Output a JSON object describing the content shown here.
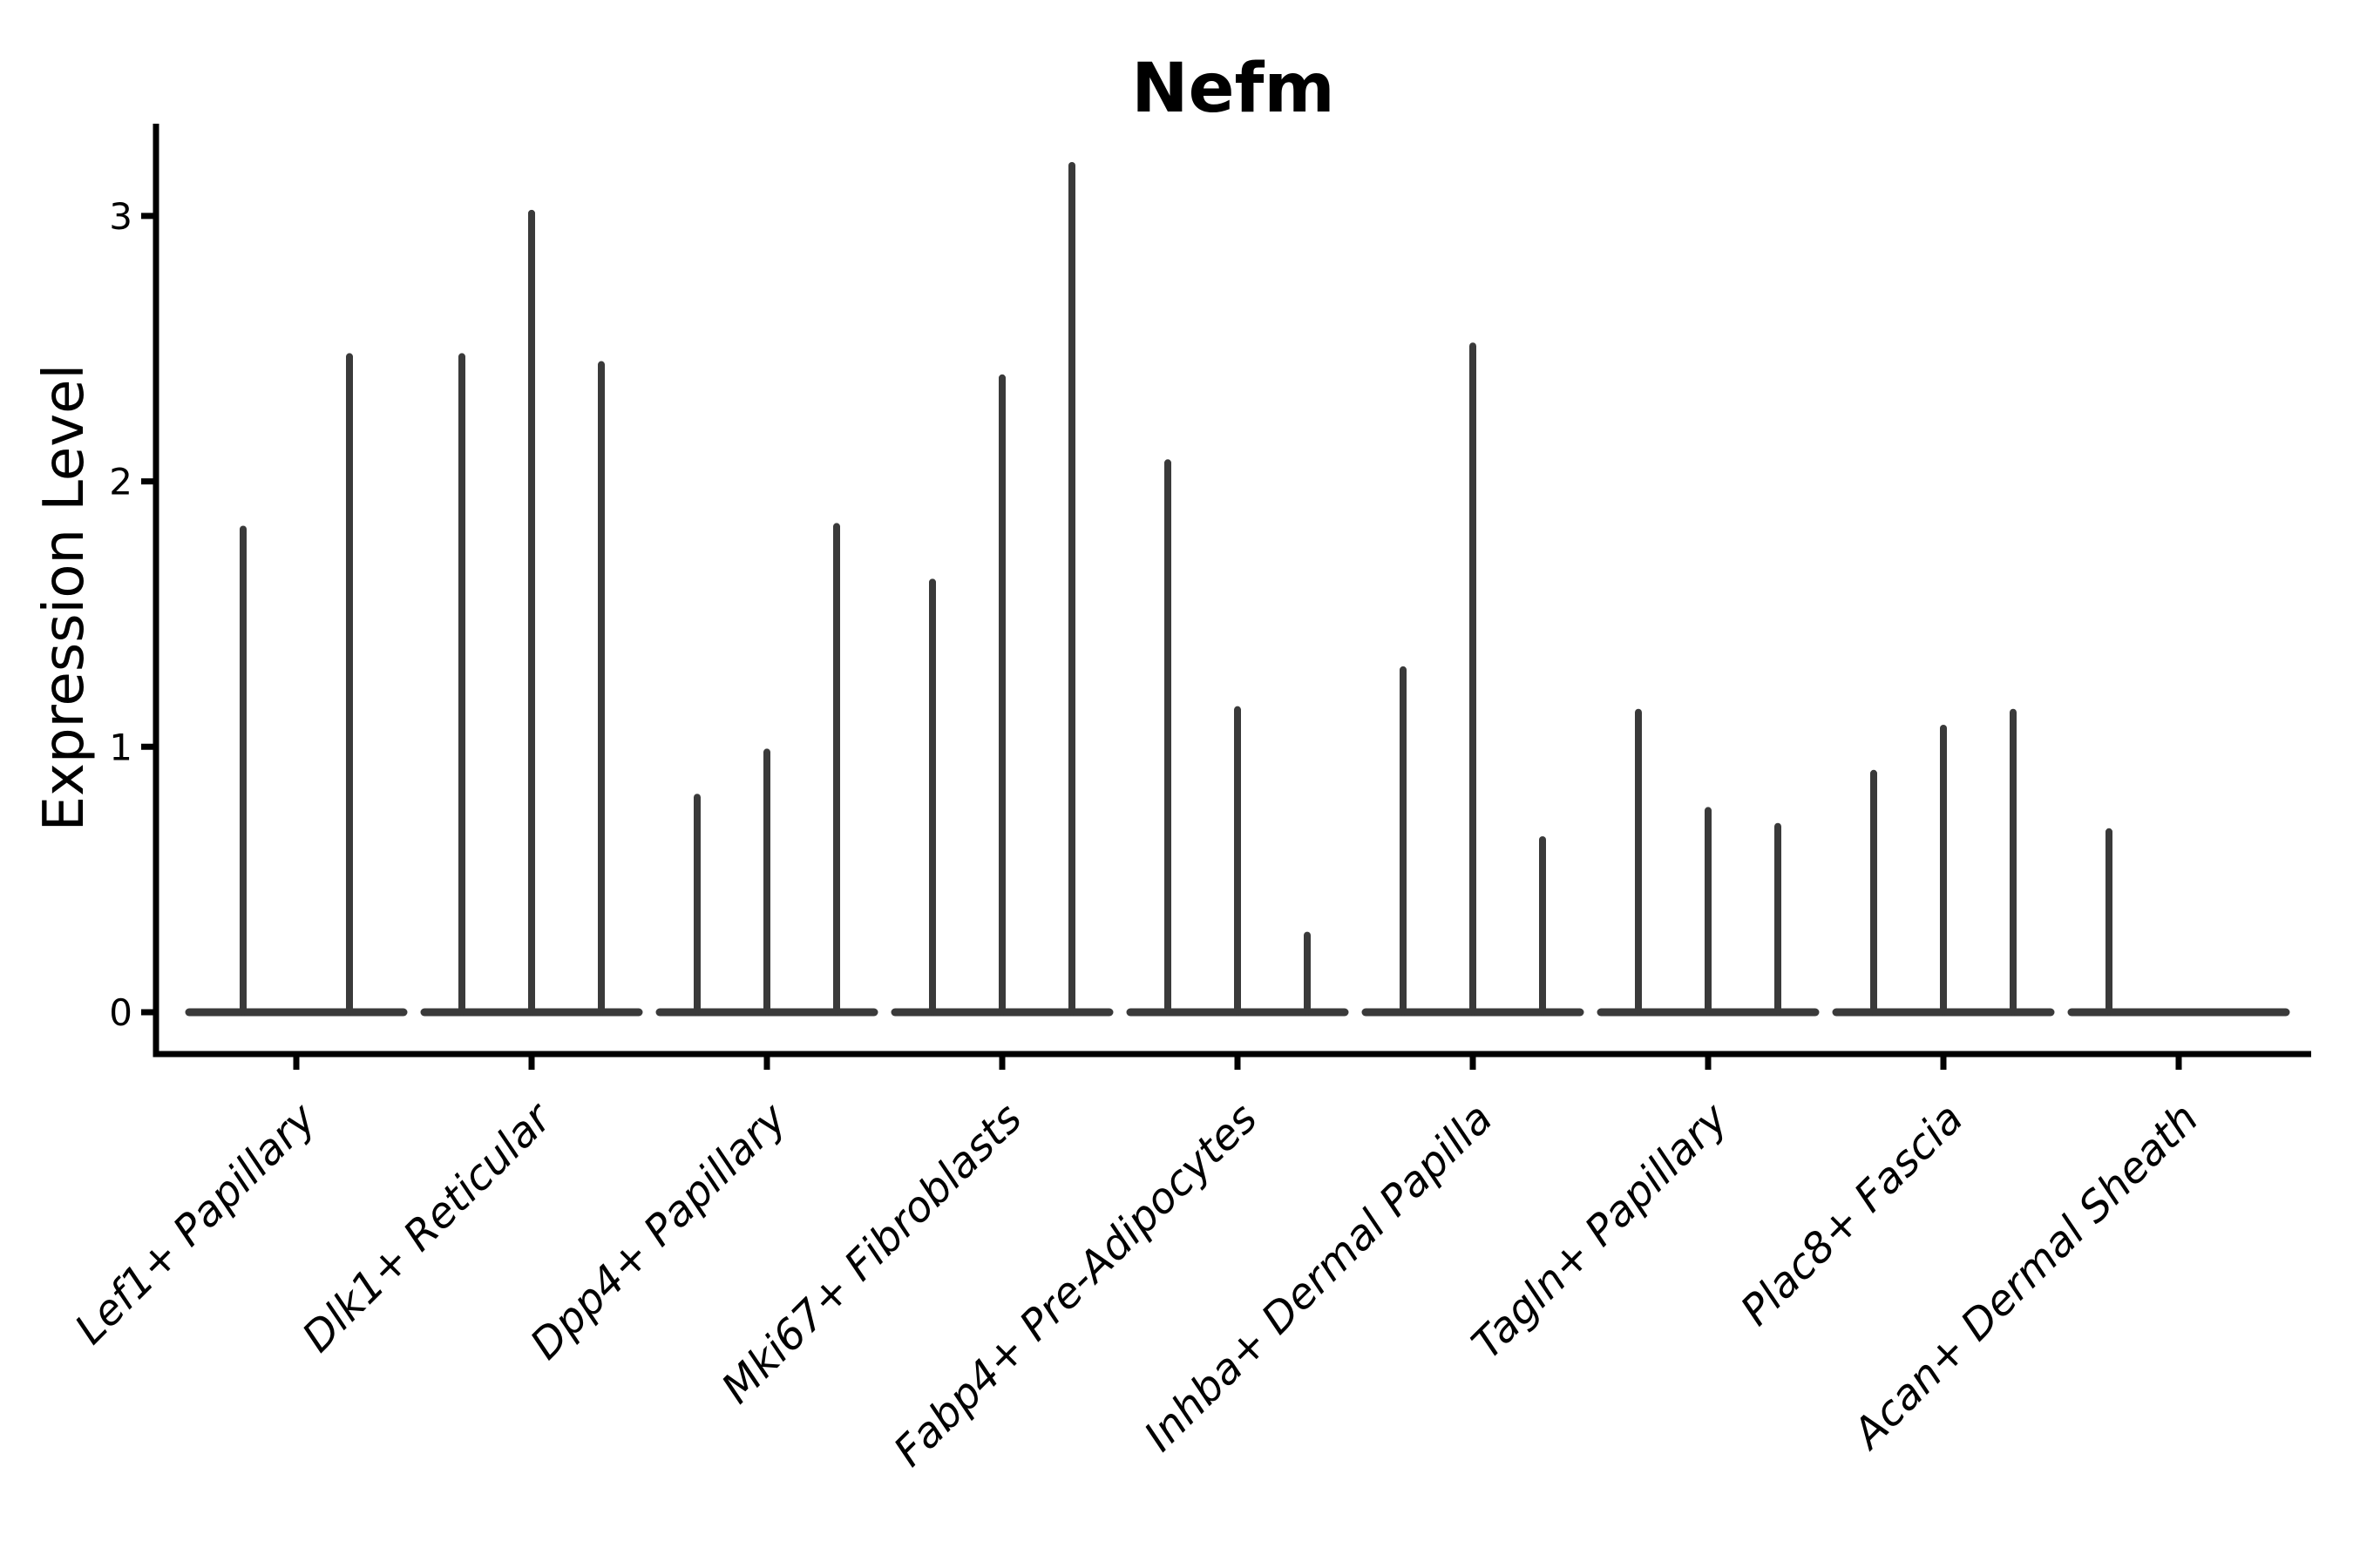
{
  "chart_data": {
    "type": "violin",
    "title": "Nefm",
    "ylabel": "Expression Level",
    "xlabel": "",
    "yticks": [
      0,
      1,
      2,
      3
    ],
    "ylim": [
      -0.16,
      3.35
    ],
    "grid": false,
    "legend": null,
    "axis_color": "#000000",
    "violin_color": "#3a3a3a",
    "categories": [
      "Lef1+ Papillary",
      "Dlk1+ Reticular",
      "Dpp4+ Papillary",
      "Mki67+ Fibroblasts",
      "Fabp4+ Pre-Adipocytes",
      "Inhba+ Dermal Papilla",
      "Tagln+ Papillary",
      "Plac8+ Fascia",
      "Acan+ Dermal Sheath"
    ],
    "groups": [
      {
        "category": "Lef1+ Papillary",
        "violin_max_values": [
          1.82,
          2.47
        ]
      },
      {
        "category": "Dlk1+ Reticular",
        "violin_max_values": [
          2.47,
          3.01,
          2.44
        ]
      },
      {
        "category": "Dpp4+ Papillary",
        "violin_max_values": [
          0.81,
          0.98,
          1.83
        ]
      },
      {
        "category": "Mki67+ Fibroblasts",
        "violin_max_values": [
          1.62,
          2.39,
          3.19
        ]
      },
      {
        "category": "Fabp4+ Pre-Adipocytes",
        "violin_max_values": [
          2.07,
          1.14,
          0.29
        ]
      },
      {
        "category": "Inhba+ Dermal Papilla",
        "violin_max_values": [
          1.29,
          2.51,
          0.65
        ]
      },
      {
        "category": "Tagln+ Papillary",
        "violin_max_values": [
          1.13,
          0.76,
          0.7
        ]
      },
      {
        "category": "Plac8+ Fascia",
        "violin_max_values": [
          0.9,
          1.07,
          1.13
        ]
      },
      {
        "category": "Acan+ Dermal Sheath",
        "violin_max_values": [
          0.68,
          0,
          0
        ]
      }
    ]
  }
}
